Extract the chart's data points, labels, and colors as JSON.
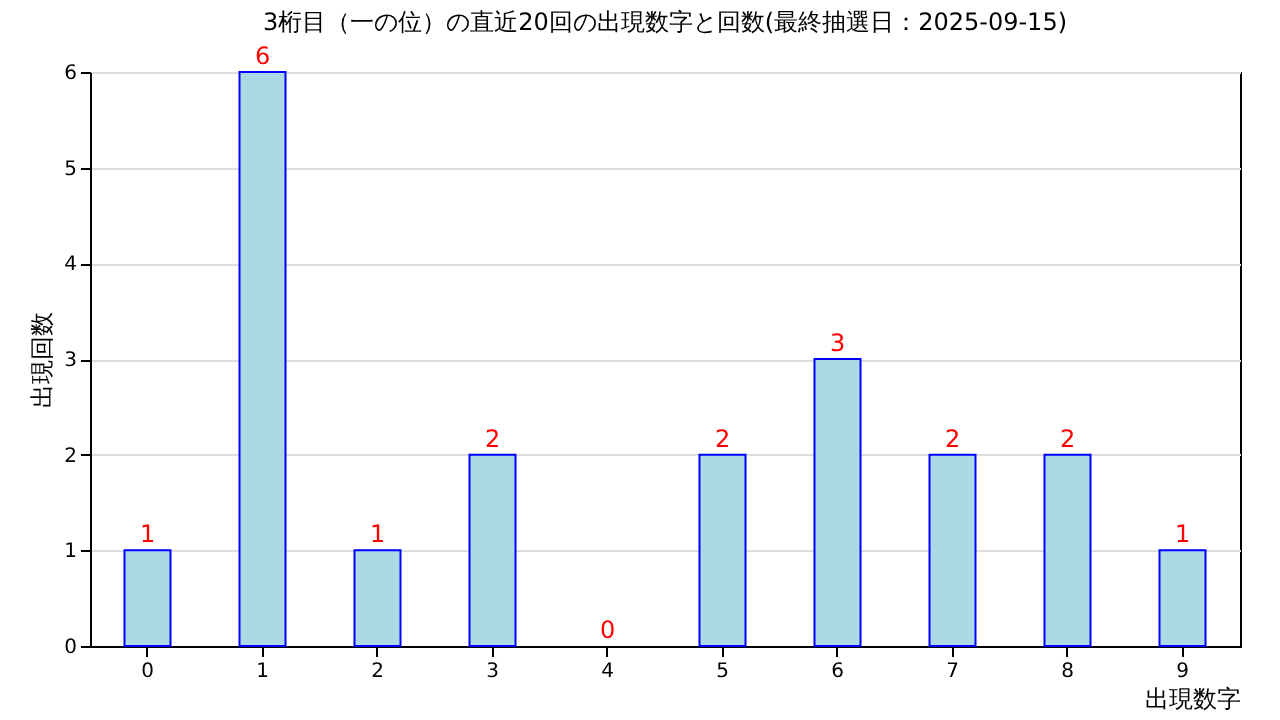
{
  "chart_data": {
    "type": "bar",
    "title": "3桁目（一の位）の直近20回の出現数字と回数(最終抽選日：2025-09-15)",
    "xlabel": "出現数字",
    "ylabel": "出現回数",
    "categories": [
      "0",
      "1",
      "2",
      "3",
      "4",
      "5",
      "6",
      "7",
      "8",
      "9"
    ],
    "values": [
      1,
      6,
      1,
      2,
      0,
      2,
      3,
      2,
      2,
      1
    ],
    "color": "#add8e6",
    "ylim": [
      0,
      6
    ],
    "yticks": [
      0,
      1,
      2,
      3,
      4,
      5,
      6
    ],
    "grid": "y",
    "data_labels": true
  }
}
